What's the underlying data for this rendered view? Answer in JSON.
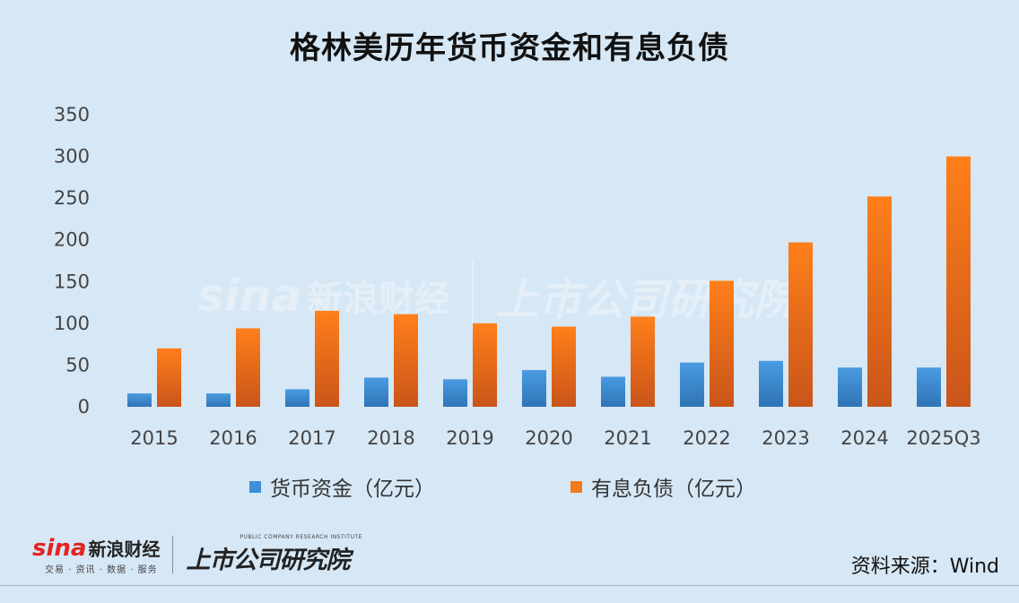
{
  "chart_data": {
    "type": "bar",
    "title": "格林美历年货币资金和有息负债",
    "categories": [
      "2015",
      "2016",
      "2017",
      "2018",
      "2019",
      "2020",
      "2021",
      "2022",
      "2023",
      "2024",
      "2025Q3"
    ],
    "series": [
      {
        "name": "货币资金（亿元）",
        "color": "#3f8fd6",
        "values": [
          16,
          16,
          21,
          35,
          33,
          44,
          36,
          53,
          55,
          47,
          47
        ]
      },
      {
        "name": "有息负债（亿元）",
        "color": "#f07a1c",
        "values": [
          70,
          94,
          115,
          111,
          100,
          96,
          108,
          151,
          197,
          252,
          300
        ]
      }
    ],
    "yticks": [
      0,
      50,
      100,
      150,
      200,
      250,
      300,
      350
    ],
    "ylim": [
      0,
      350
    ],
    "grid": false,
    "legend": "bottom"
  },
  "footer": {
    "sina_brand": "sina",
    "sina_name": "新浪财经",
    "sina_tagline": "交易 · 资讯 · 数据 · 服务",
    "research_en": "PUBLIC COMPANY RESEARCH INSTITUTE",
    "research_cn": "上市公司研究院",
    "source": "资料来源：Wind"
  },
  "colors": {
    "background": "#d6e7f5",
    "money": "#3f8fd6",
    "debt": "#f07a1c"
  }
}
